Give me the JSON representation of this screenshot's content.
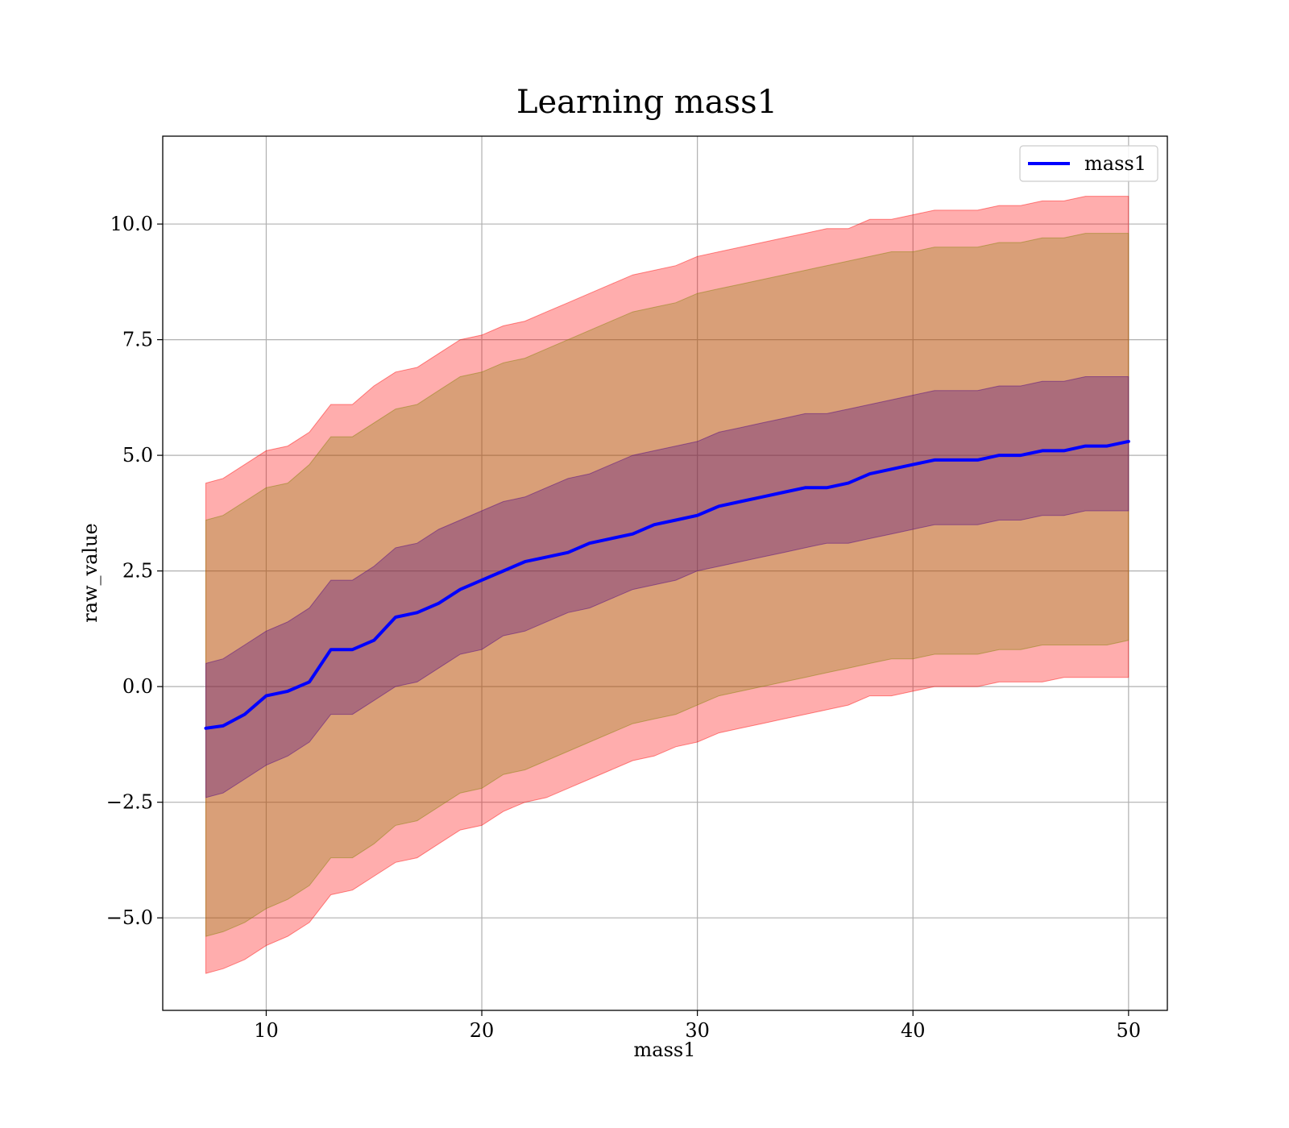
{
  "chart_data": {
    "type": "line",
    "title": "Learning mass1",
    "xlabel": "mass1",
    "ylabel": "raw_value",
    "xlim": [
      5.2,
      51.8
    ],
    "ylim": [
      -7.0,
      11.9
    ],
    "xticks": [
      10,
      20,
      30,
      40,
      50
    ],
    "xtick_labels": [
      "10",
      "20",
      "30",
      "40",
      "50"
    ],
    "yticks": [
      -5.0,
      -2.5,
      0.0,
      2.5,
      5.0,
      7.5,
      10.0
    ],
    "ytick_labels": [
      "−5.0",
      "−2.5",
      "0.0",
      "2.5",
      "5.0",
      "7.5",
      "10.0"
    ],
    "grid": true,
    "legend_position": "top-right",
    "x": [
      7.2,
      8,
      9,
      10,
      11,
      12,
      13,
      14,
      15,
      16,
      17,
      18,
      19,
      20,
      21,
      22,
      23,
      24,
      25,
      26,
      27,
      28,
      29,
      30,
      31,
      32,
      33,
      34,
      35,
      36,
      37,
      38,
      39,
      40,
      41,
      42,
      43,
      44,
      45,
      46,
      47,
      48,
      49,
      50
    ],
    "series": [
      {
        "name": "mass1",
        "color": "#0000ff",
        "values": [
          -0.9,
          -0.85,
          -0.6,
          -0.2,
          -0.1,
          0.1,
          0.8,
          0.8,
          1.0,
          1.5,
          1.6,
          1.8,
          2.1,
          2.3,
          2.5,
          2.7,
          2.8,
          2.9,
          3.1,
          3.2,
          3.3,
          3.5,
          3.6,
          3.7,
          3.9,
          4.0,
          4.1,
          4.2,
          4.3,
          4.3,
          4.4,
          4.6,
          4.7,
          4.8,
          4.9,
          4.9,
          4.9,
          5.0,
          5.0,
          5.1,
          5.1,
          5.2,
          5.2,
          5.3
        ]
      }
    ],
    "bands": [
      {
        "color": "#ff0000",
        "alpha": 0.32,
        "upper": [
          4.4,
          4.5,
          4.8,
          5.1,
          5.2,
          5.5,
          6.1,
          6.1,
          6.5,
          6.8,
          6.9,
          7.2,
          7.5,
          7.6,
          7.8,
          7.9,
          8.1,
          8.3,
          8.5,
          8.7,
          8.9,
          9.0,
          9.1,
          9.3,
          9.4,
          9.5,
          9.6,
          9.7,
          9.8,
          9.9,
          9.9,
          10.1,
          10.1,
          10.2,
          10.3,
          10.3,
          10.3,
          10.4,
          10.4,
          10.5,
          10.5,
          10.6,
          10.6,
          10.6
        ],
        "lower": [
          -6.2,
          -6.1,
          -5.9,
          -5.6,
          -5.4,
          -5.1,
          -4.5,
          -4.4,
          -4.1,
          -3.8,
          -3.7,
          -3.4,
          -3.1,
          -3.0,
          -2.7,
          -2.5,
          -2.4,
          -2.2,
          -2.0,
          -1.8,
          -1.6,
          -1.5,
          -1.3,
          -1.2,
          -1.0,
          -0.9,
          -0.8,
          -0.7,
          -0.6,
          -0.5,
          -0.4,
          -0.2,
          -0.2,
          -0.1,
          0.0,
          0.0,
          0.0,
          0.1,
          0.1,
          0.1,
          0.2,
          0.2,
          0.2,
          0.2
        ]
      },
      {
        "color": "#808000",
        "alpha": 0.3,
        "upper": [
          3.6,
          3.7,
          4.0,
          4.3,
          4.4,
          4.8,
          5.4,
          5.4,
          5.7,
          6.0,
          6.1,
          6.4,
          6.7,
          6.8,
          7.0,
          7.1,
          7.3,
          7.5,
          7.7,
          7.9,
          8.1,
          8.2,
          8.3,
          8.5,
          8.6,
          8.7,
          8.8,
          8.9,
          9.0,
          9.1,
          9.2,
          9.3,
          9.4,
          9.4,
          9.5,
          9.5,
          9.5,
          9.6,
          9.6,
          9.7,
          9.7,
          9.8,
          9.8,
          9.8
        ],
        "lower": [
          -5.4,
          -5.3,
          -5.1,
          -4.8,
          -4.6,
          -4.3,
          -3.7,
          -3.7,
          -3.4,
          -3.0,
          -2.9,
          -2.6,
          -2.3,
          -2.2,
          -1.9,
          -1.8,
          -1.6,
          -1.4,
          -1.2,
          -1.0,
          -0.8,
          -0.7,
          -0.6,
          -0.4,
          -0.2,
          -0.1,
          0.0,
          0.1,
          0.2,
          0.3,
          0.4,
          0.5,
          0.6,
          0.6,
          0.7,
          0.7,
          0.7,
          0.8,
          0.8,
          0.9,
          0.9,
          0.9,
          0.9,
          1.0
        ]
      },
      {
        "color": "#4b0082",
        "alpha": 0.32,
        "upper": [
          0.5,
          0.6,
          0.9,
          1.2,
          1.4,
          1.7,
          2.3,
          2.3,
          2.6,
          3.0,
          3.1,
          3.4,
          3.6,
          3.8,
          4.0,
          4.1,
          4.3,
          4.5,
          4.6,
          4.8,
          5.0,
          5.1,
          5.2,
          5.3,
          5.5,
          5.6,
          5.7,
          5.8,
          5.9,
          5.9,
          6.0,
          6.1,
          6.2,
          6.3,
          6.4,
          6.4,
          6.4,
          6.5,
          6.5,
          6.6,
          6.6,
          6.7,
          6.7,
          6.7
        ],
        "lower": [
          -2.4,
          -2.3,
          -2.0,
          -1.7,
          -1.5,
          -1.2,
          -0.6,
          -0.6,
          -0.3,
          0.0,
          0.1,
          0.4,
          0.7,
          0.8,
          1.1,
          1.2,
          1.4,
          1.6,
          1.7,
          1.9,
          2.1,
          2.2,
          2.3,
          2.5,
          2.6,
          2.7,
          2.8,
          2.9,
          3.0,
          3.1,
          3.1,
          3.2,
          3.3,
          3.4,
          3.5,
          3.5,
          3.5,
          3.6,
          3.6,
          3.7,
          3.7,
          3.8,
          3.8,
          3.8
        ]
      }
    ]
  }
}
